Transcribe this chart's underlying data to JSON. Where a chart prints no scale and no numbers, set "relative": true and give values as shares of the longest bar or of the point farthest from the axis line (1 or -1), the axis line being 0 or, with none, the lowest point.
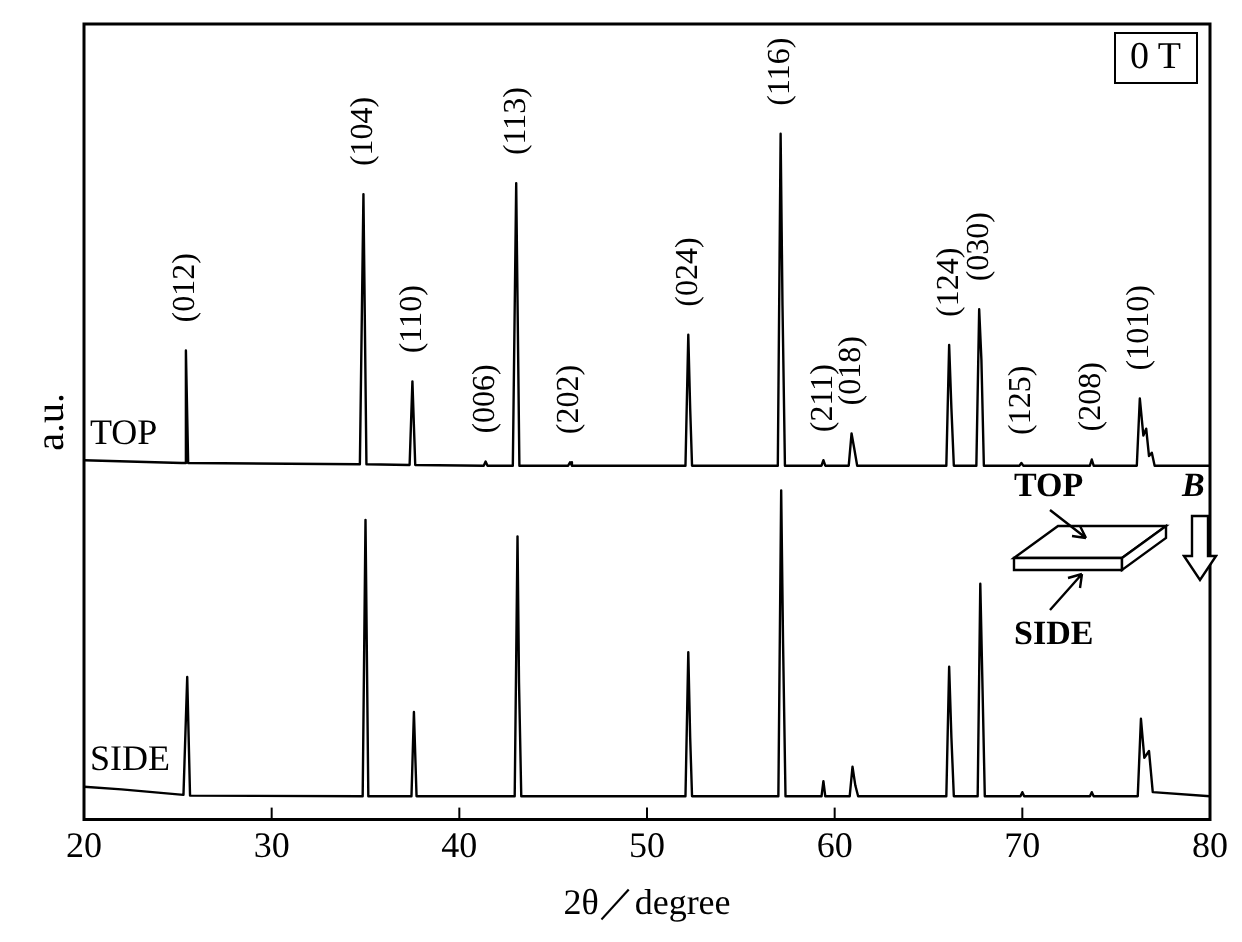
{
  "chart_data": {
    "type": "line",
    "relative": true,
    "xlabel": "2θ／degree",
    "ylabel": "a.u.",
    "xlim": [
      20,
      80
    ],
    "xticks": [
      20,
      30,
      40,
      50,
      60,
      70,
      80
    ],
    "grid": false,
    "legend": false,
    "marker": "none",
    "line_style": "solid",
    "series": [
      {
        "name": "TOP",
        "color": "#000000",
        "x": [
          20,
          25.2,
          25.35,
          25.43,
          25.55,
          34.7,
          34.89,
          35.05,
          37.35,
          37.5,
          37.65,
          41.3,
          41.4,
          41.5,
          42.85,
          43.03,
          43.2,
          45.8,
          45.9,
          46.0,
          52.05,
          52.2,
          52.3,
          52.4,
          56.97,
          57.12,
          57.22,
          57.35,
          59.3,
          59.4,
          59.5,
          60.75,
          60.9,
          61.05,
          61.2,
          65.95,
          66.1,
          66.22,
          66.35,
          67.55,
          67.7,
          67.82,
          67.95,
          69.85,
          69.95,
          70.05,
          73.6,
          73.7,
          73.8,
          76.1,
          76.26,
          76.45,
          76.6,
          76.75,
          76.9,
          77.05,
          80
        ],
        "values": [
          0.524,
          0.52,
          0.52,
          0.684,
          0.52,
          0.518,
          0.912,
          0.518,
          0.517,
          0.639,
          0.517,
          0.516,
          0.522,
          0.516,
          0.516,
          0.928,
          0.516,
          0.516,
          0.521,
          0.516,
          0.516,
          0.707,
          0.6,
          0.516,
          0.516,
          1.0,
          0.75,
          0.516,
          0.516,
          0.524,
          0.516,
          0.516,
          0.563,
          0.54,
          0.516,
          0.516,
          0.692,
          0.6,
          0.516,
          0.516,
          0.744,
          0.67,
          0.516,
          0.516,
          0.52,
          0.516,
          0.516,
          0.525,
          0.516,
          0.516,
          0.614,
          0.56,
          0.57,
          0.53,
          0.535,
          0.516,
          0.516
        ]
      },
      {
        "name": "SIDE",
        "color": "#000000",
        "x": [
          20,
          22,
          25.3,
          25.5,
          25.65,
          34.85,
          35.0,
          35.15,
          37.45,
          37.58,
          37.72,
          42.95,
          43.1,
          43.18,
          43.3,
          52.05,
          52.2,
          52.3,
          52.4,
          57.0,
          57.15,
          57.25,
          57.38,
          59.3,
          59.4,
          59.5,
          60.8,
          60.95,
          61.1,
          61.25,
          65.95,
          66.1,
          66.22,
          66.35,
          67.62,
          67.76,
          67.88,
          68.0,
          69.9,
          70.0,
          70.1,
          73.6,
          73.7,
          73.8,
          76.15,
          76.32,
          76.5,
          76.75,
          76.95,
          80
        ],
        "values": [
          0.048,
          0.044,
          0.036,
          0.208,
          0.035,
          0.034,
          0.437,
          0.034,
          0.034,
          0.157,
          0.034,
          0.034,
          0.413,
          0.2,
          0.034,
          0.034,
          0.244,
          0.12,
          0.034,
          0.034,
          0.48,
          0.257,
          0.034,
          0.034,
          0.056,
          0.034,
          0.034,
          0.077,
          0.05,
          0.034,
          0.034,
          0.223,
          0.12,
          0.034,
          0.034,
          0.344,
          0.19,
          0.034,
          0.034,
          0.04,
          0.034,
          0.034,
          0.04,
          0.034,
          0.034,
          0.147,
          0.09,
          0.1,
          0.04,
          0.034
        ]
      }
    ],
    "annotations": [
      "0 T",
      "TOP",
      "B",
      "SIDE",
      {
        "text": "(012)",
        "x": 25.43,
        "y": 0.684
      },
      {
        "text": "(104)",
        "x": 34.89,
        "y": 0.912
      },
      {
        "text": "(110)",
        "x": 37.5,
        "y": 0.639
      },
      {
        "text": "(006)",
        "x": 41.4,
        "y": 0.522
      },
      {
        "text": "(113)",
        "x": 43.03,
        "y": 0.928
      },
      {
        "text": "(202)",
        "x": 45.9,
        "y": 0.521
      },
      {
        "text": "(024)",
        "x": 52.2,
        "y": 0.707
      },
      {
        "text": "(116)",
        "x": 57.12,
        "y": 1.0
      },
      {
        "text": "(211)",
        "x": 59.4,
        "y": 0.524
      },
      {
        "text": "(018)",
        "x": 60.9,
        "y": 0.563
      },
      {
        "text": "(124)",
        "x": 66.1,
        "y": 0.692
      },
      {
        "text": "(030)",
        "x": 67.7,
        "y": 0.744
      },
      {
        "text": "(125)",
        "x": 69.95,
        "y": 0.52
      },
      {
        "text": "(208)",
        "x": 73.7,
        "y": 0.525
      },
      {
        "text": "(1010)",
        "x": 76.26,
        "y": 0.614
      }
    ]
  }
}
